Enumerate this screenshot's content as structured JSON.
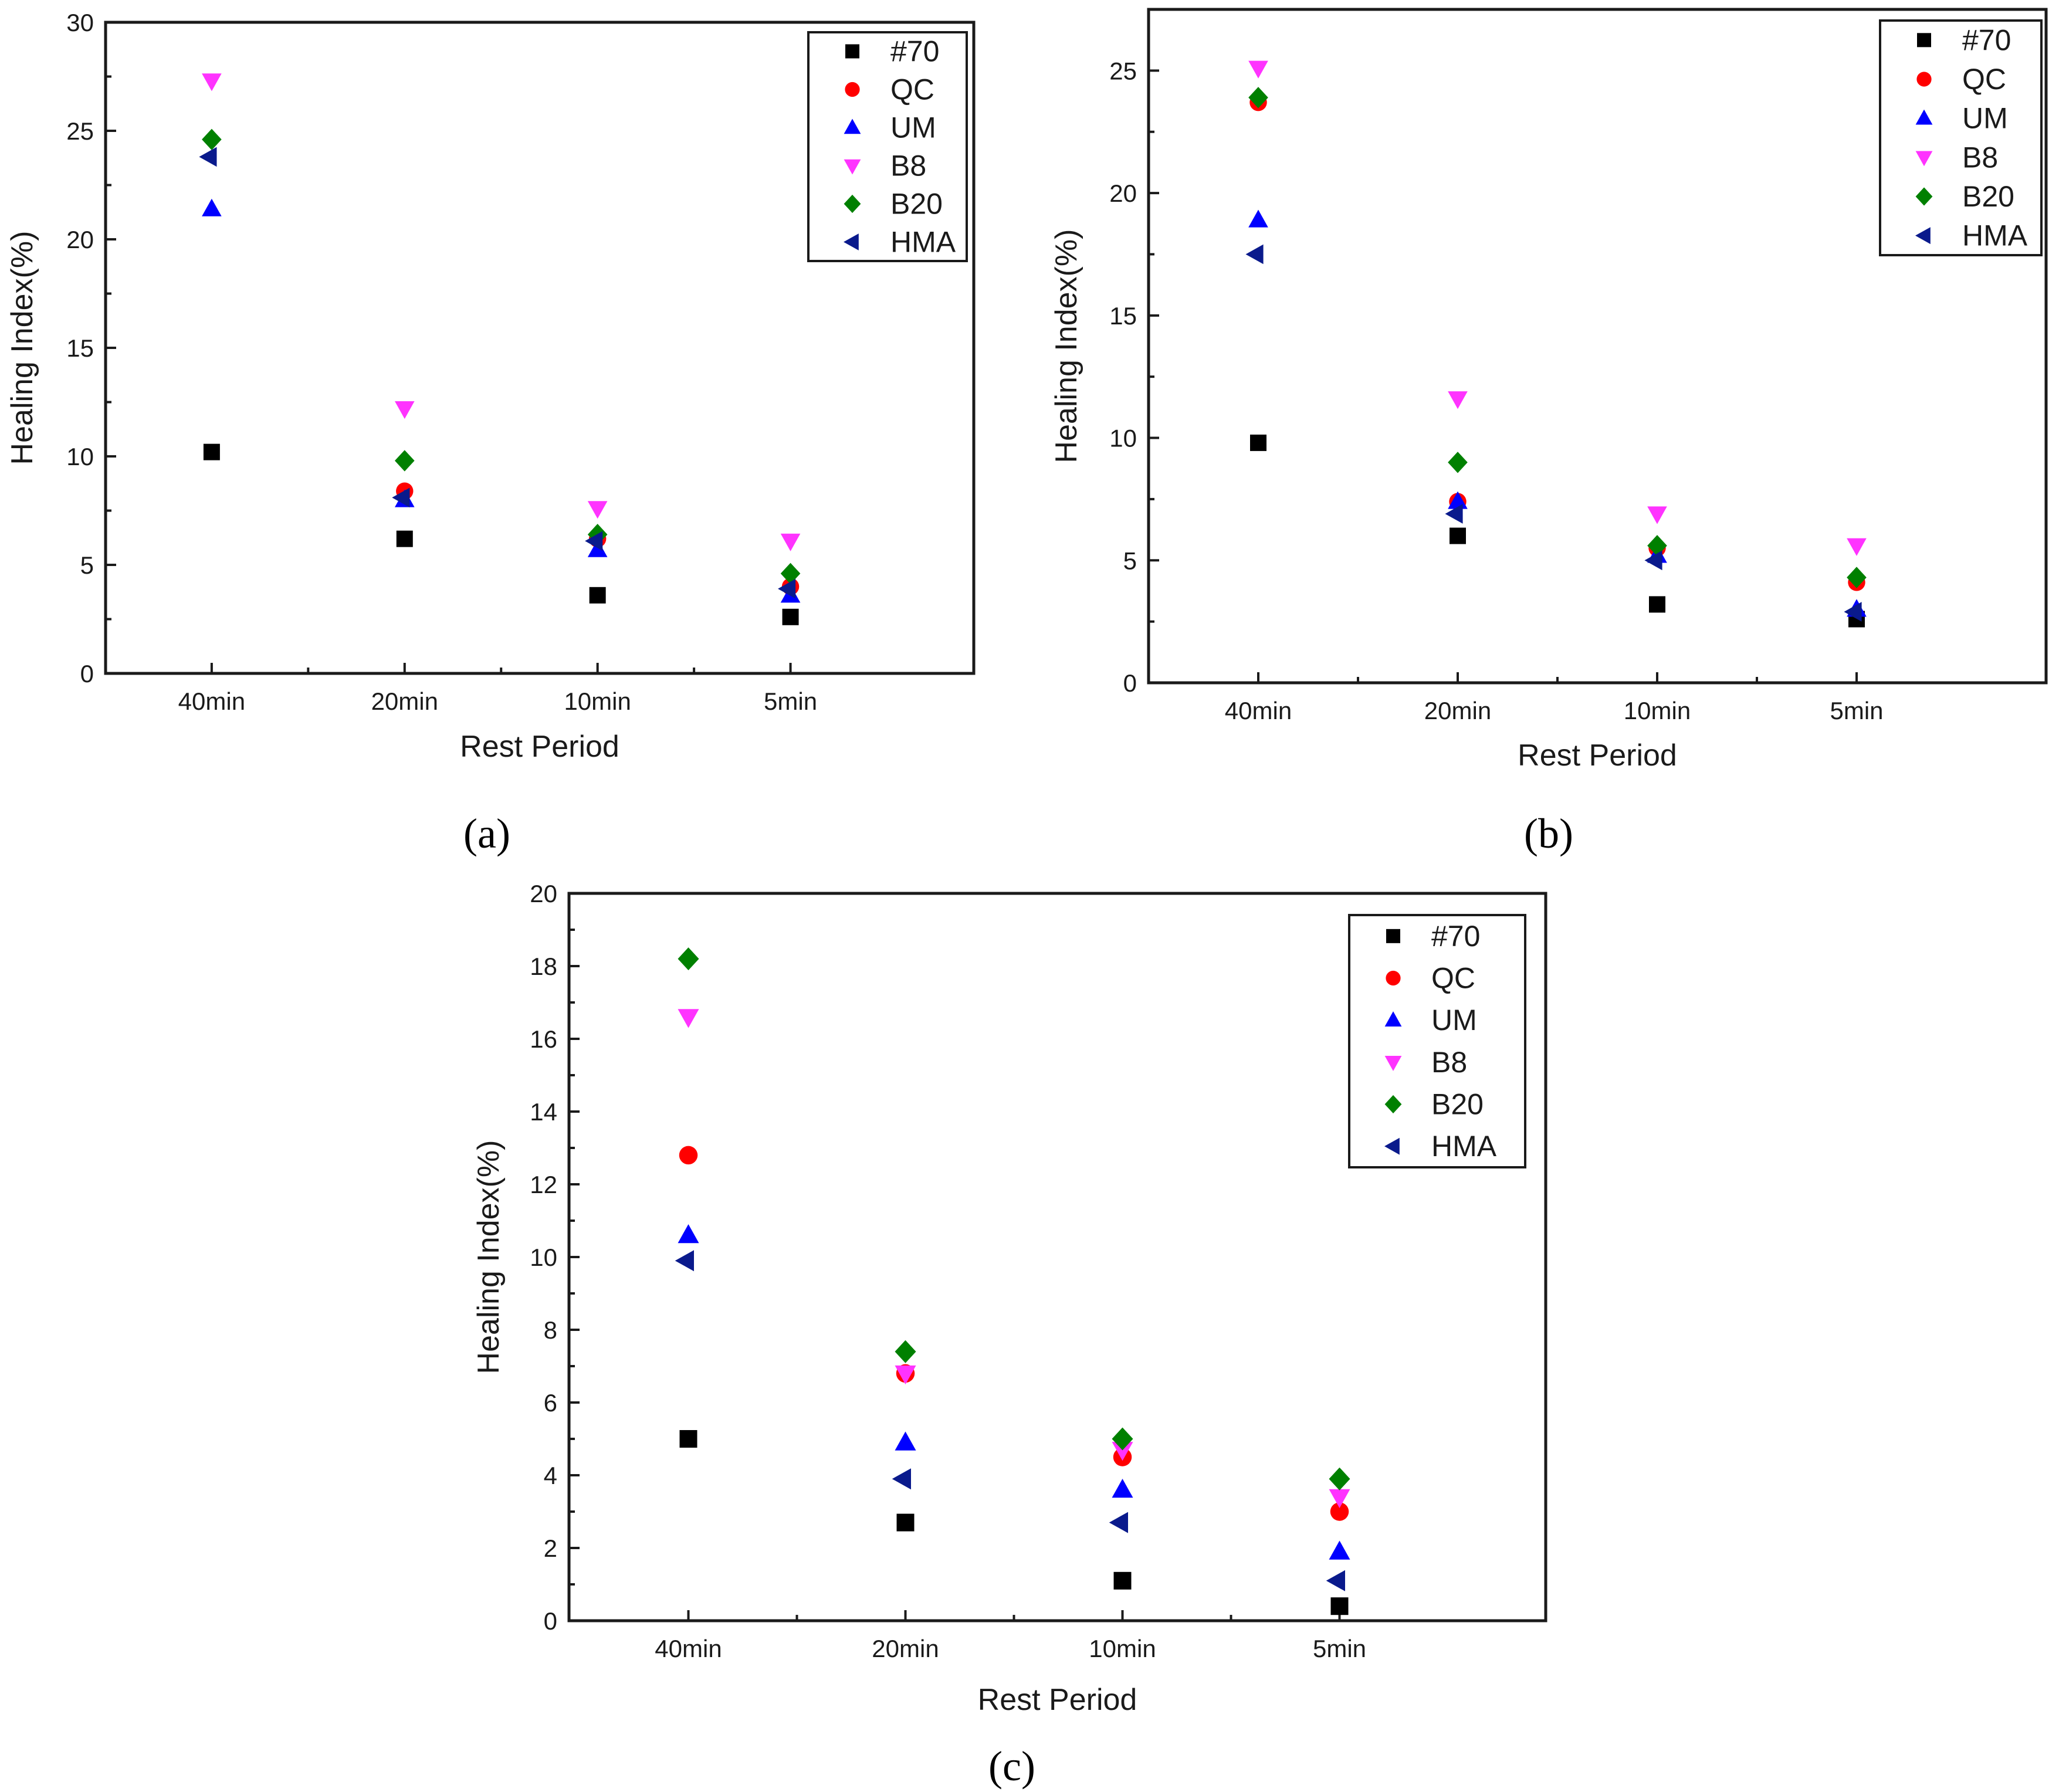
{
  "figure": {
    "colors": {
      "#70": "#000000",
      "QC": "#ff0000",
      "UM": "#0000ff",
      "B8": "#ff33ff",
      "B20": "#008000",
      "HMA": "#0a1a8c"
    },
    "markers": {
      "#70": "square",
      "QC": "circle",
      "UM": "triangle-up",
      "B8": "triangle-down",
      "B20": "diamond",
      "HMA": "triangle-left"
    }
  },
  "chart_data": [
    {
      "type": "scatter",
      "panel_label": "(a)",
      "title": "",
      "xlabel": "Rest Period",
      "ylabel": "Healing Index(%)",
      "categories": [
        "40min",
        "20min",
        "10min",
        "5min"
      ],
      "ylim": [
        0,
        30
      ],
      "yticks": [
        "0",
        "5",
        "10",
        "15",
        "20",
        "25",
        "30"
      ],
      "legend_position": "top-right",
      "series": [
        {
          "name": "#70",
          "values": [
            10.2,
            6.2,
            3.6,
            2.6
          ]
        },
        {
          "name": "QC",
          "values": [
            null,
            8.4,
            6.2,
            4.0
          ]
        },
        {
          "name": "UM",
          "values": [
            21.4,
            8.0,
            5.7,
            3.6
          ]
        },
        {
          "name": "B8",
          "values": [
            27.3,
            12.2,
            7.6,
            6.1
          ]
        },
        {
          "name": "B20",
          "values": [
            24.6,
            9.8,
            6.4,
            4.6
          ]
        },
        {
          "name": "HMA",
          "values": [
            23.8,
            8.1,
            6.1,
            3.9
          ]
        }
      ]
    },
    {
      "type": "scatter",
      "panel_label": "(b)",
      "title": "",
      "xlabel": "Rest Period",
      "ylabel": "Healing Index(%)",
      "categories": [
        "40min",
        "20min",
        "10min",
        "5min"
      ],
      "ylim": [
        0,
        27.5
      ],
      "yticks": [
        "0",
        "5",
        "10",
        "15",
        "20",
        "25"
      ],
      "legend_position": "top-right",
      "series": [
        {
          "name": "#70",
          "values": [
            9.8,
            6.0,
            3.2,
            2.6
          ]
        },
        {
          "name": "QC",
          "values": [
            23.7,
            7.4,
            5.5,
            4.1
          ]
        },
        {
          "name": "UM",
          "values": [
            18.9,
            7.4,
            5.2,
            3.0
          ]
        },
        {
          "name": "B8",
          "values": [
            25.1,
            11.6,
            6.9,
            5.6
          ]
        },
        {
          "name": "B20",
          "values": [
            23.9,
            9.0,
            5.6,
            4.3
          ]
        },
        {
          "name": "HMA",
          "values": [
            17.5,
            6.9,
            5.0,
            2.9
          ]
        }
      ]
    },
    {
      "type": "scatter",
      "panel_label": "(c)",
      "title": "",
      "xlabel": "Rest Period",
      "ylabel": "Healing Index(%)",
      "categories": [
        "40min",
        "20min",
        "10min",
        "5min"
      ],
      "ylim": [
        0,
        20
      ],
      "yticks": [
        "0",
        "2",
        "4",
        "6",
        "8",
        "10",
        "12",
        "14",
        "16",
        "18",
        "20"
      ],
      "legend_position": "top-right",
      "series": [
        {
          "name": "#70",
          "values": [
            5.0,
            2.7,
            1.1,
            0.4
          ]
        },
        {
          "name": "QC",
          "values": [
            12.8,
            6.8,
            4.5,
            3.0
          ]
        },
        {
          "name": "UM",
          "values": [
            10.6,
            4.9,
            3.6,
            1.9
          ]
        },
        {
          "name": "B8",
          "values": [
            16.6,
            6.8,
            4.7,
            3.4
          ]
        },
        {
          "name": "B20",
          "values": [
            18.2,
            7.4,
            5.0,
            3.9
          ]
        },
        {
          "name": "HMA",
          "values": [
            9.9,
            3.9,
            2.7,
            1.1
          ]
        }
      ]
    }
  ]
}
